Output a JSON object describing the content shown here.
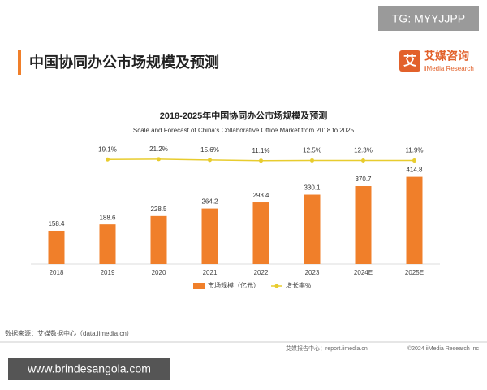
{
  "page": {
    "title": "中国协同办公市场规模及预测",
    "logo_mark": "艾",
    "logo_name": "艾媒咨询",
    "logo_sub": "iiMedia Research",
    "watermark_top": "TG: MYYJJPP",
    "source": "数据来源：艾媒数据中心（data.iimedia.cn）",
    "footer_left": "艾媒报告中心：report.iimedia.cn",
    "footer_right": "©2024  iiMedia Research  Inc",
    "watermark_bottom": "www.brindesangola.com"
  },
  "chart_data": {
    "type": "bar-line",
    "title": "2018-2025年中国协同办公市场规模及预测",
    "subtitle": "Scale and Forecast of China's Collaborative Office Market from 2018 to 2025",
    "categories": [
      "2018",
      "2019",
      "2020",
      "2021",
      "2022",
      "2023",
      "2024E",
      "2025E"
    ],
    "series": [
      {
        "name": "市场规模（亿元）",
        "color": "#f07f2a",
        "type": "bar",
        "values": [
          158.4,
          188.6,
          228.5,
          264.2,
          293.4,
          330.1,
          370.7,
          414.8
        ]
      },
      {
        "name": "增长率%",
        "color": "#e8cc2e",
        "type": "line",
        "axis": "y2",
        "values": [
          null,
          19.1,
          21.2,
          15.6,
          11.1,
          12.5,
          12.3,
          11.9
        ],
        "value_labels": [
          null,
          "19.1%",
          "21.2%",
          "15.6%",
          "11.1%",
          "12.5%",
          "12.3%",
          "11.9%"
        ]
      }
    ],
    "ylim": [
      0,
      560
    ],
    "y2lim": [
      -700,
      110
    ],
    "grid": false,
    "legend": "bottom"
  }
}
